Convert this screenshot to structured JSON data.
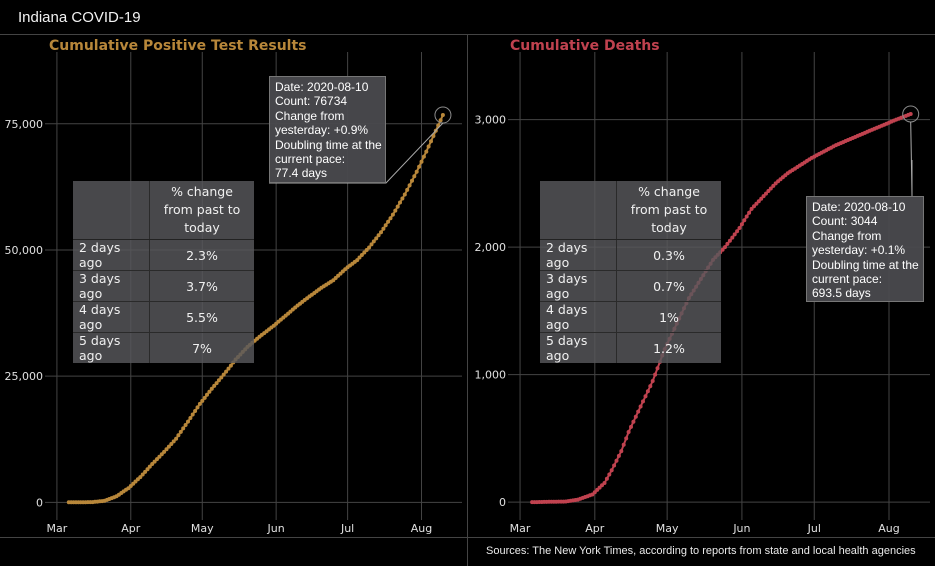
{
  "app_title": "Indiana COVID-19",
  "source": "Sources: The New York Times, according to reports from state and local health agencies",
  "colors": {
    "cases": "#b8873a",
    "deaths": "#c0424f",
    "background": "#000000",
    "grid": "#444444"
  },
  "chart_data": [
    {
      "type": "line",
      "title": "Cumulative Positive Test Results",
      "x_tick_labels": [
        "Mar",
        "Apr",
        "May",
        "Jun",
        "Jul",
        "Aug"
      ],
      "x_ticks": [
        "2020-03-01",
        "2020-04-01",
        "2020-05-01",
        "2020-06-01",
        "2020-07-01",
        "2020-08-01"
      ],
      "xlim": [
        "2020-02-25",
        "2020-08-18"
      ],
      "y_tick_labels": [
        "0",
        "25,000",
        "50,000",
        "75,000"
      ],
      "y_ticks": [
        0,
        25000,
        50000,
        75000
      ],
      "ylim": [
        -3500,
        92000
      ],
      "grid": true,
      "series": [
        {
          "x": [
            "2020-03-06",
            "2020-03-16",
            "2020-03-21",
            "2020-03-26",
            "2020-03-31",
            "2020-04-05",
            "2020-04-10",
            "2020-04-15",
            "2020-04-20",
            "2020-04-25",
            "2020-04-30",
            "2020-05-05",
            "2020-05-10",
            "2020-05-15",
            "2020-05-20",
            "2020-05-25",
            "2020-05-31",
            "2020-06-05",
            "2020-06-10",
            "2020-06-15",
            "2020-06-20",
            "2020-06-25",
            "2020-06-30",
            "2020-07-05",
            "2020-07-10",
            "2020-07-15",
            "2020-07-20",
            "2020-07-25",
            "2020-07-30",
            "2020-08-04",
            "2020-08-10"
          ],
          "y": [
            1,
            50,
            300,
            1200,
            2800,
            5000,
            7600,
            10000,
            12600,
            16000,
            19500,
            22500,
            25300,
            28300,
            30800,
            32800,
            35000,
            37000,
            39000,
            40800,
            42500,
            44000,
            46200,
            48000,
            50500,
            53500,
            57000,
            61000,
            65500,
            70500,
            76734
          ]
        }
      ],
      "table": {
        "header": "% change from past to today",
        "rows": [
          {
            "label": "2 days ago",
            "value": "2.3%"
          },
          {
            "label": "3 days ago",
            "value": "3.7%"
          },
          {
            "label": "4 days ago",
            "value": "5.5%"
          },
          {
            "label": "5 days ago",
            "value": "7%"
          }
        ]
      },
      "tooltip": {
        "date": "Date: 2020-08-10",
        "count": "Count: 76734",
        "change_1": "Change from",
        "change_2": "yesterday: +0.9%",
        "doubling_1": "Doubling time at the",
        "doubling_2": "current pace:",
        "doubling_3": "77.4 days"
      }
    },
    {
      "type": "line",
      "title": "Cumulative Deaths",
      "x_tick_labels": [
        "Mar",
        "Apr",
        "May",
        "Jun",
        "Jul",
        "Aug"
      ],
      "x_ticks": [
        "2020-03-01",
        "2020-04-01",
        "2020-05-01",
        "2020-06-01",
        "2020-07-01",
        "2020-08-01"
      ],
      "xlim": [
        "2020-02-25",
        "2020-08-18"
      ],
      "y_tick_labels": [
        "0",
        "1,000",
        "2,000",
        "3,000"
      ],
      "y_ticks": [
        0,
        1000,
        2000,
        3000
      ],
      "ylim": [
        -140,
        3640
      ],
      "grid": true,
      "series": [
        {
          "x": [
            "2020-03-06",
            "2020-03-20",
            "2020-03-25",
            "2020-03-31",
            "2020-04-05",
            "2020-04-08",
            "2020-04-12",
            "2020-04-15",
            "2020-04-20",
            "2020-04-25",
            "2020-04-30",
            "2020-05-05",
            "2020-05-10",
            "2020-05-15",
            "2020-05-20",
            "2020-05-25",
            "2020-05-31",
            "2020-06-05",
            "2020-06-10",
            "2020-06-15",
            "2020-06-20",
            "2020-06-25",
            "2020-06-30",
            "2020-07-05",
            "2020-07-10",
            "2020-07-15",
            "2020-07-20",
            "2020-07-25",
            "2020-07-30",
            "2020-08-04",
            "2020-08-10"
          ],
          "y": [
            0,
            5,
            20,
            60,
            150,
            250,
            400,
            550,
            750,
            950,
            1200,
            1400,
            1600,
            1750,
            1900,
            2000,
            2150,
            2300,
            2400,
            2500,
            2580,
            2640,
            2700,
            2750,
            2800,
            2840,
            2880,
            2920,
            2960,
            3000,
            3044
          ]
        }
      ],
      "table": {
        "header": "% change from past to today",
        "rows": [
          {
            "label": "2 days ago",
            "value": "0.3%"
          },
          {
            "label": "3 days ago",
            "value": "0.7%"
          },
          {
            "label": "4 days ago",
            "value": "1%"
          },
          {
            "label": "5 days ago",
            "value": "1.2%"
          }
        ]
      },
      "tooltip": {
        "date": "Date: 2020-08-10",
        "count": "Count: 3044",
        "change_1": "Change from",
        "change_2": "yesterday: +0.1%",
        "doubling_1": "Doubling time at the",
        "doubling_2": "current pace:",
        "doubling_3": "693.5 days"
      }
    }
  ]
}
